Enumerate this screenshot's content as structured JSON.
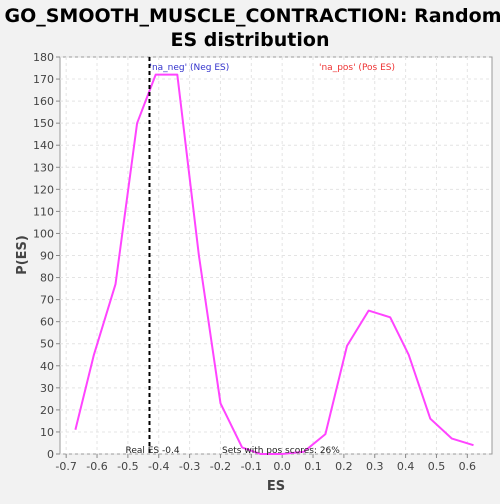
{
  "chart_data": {
    "type": "line",
    "title_lines": [
      "GO_SMOOTH_MUSCLE_CONTRACTION: Random",
      "ES distribution"
    ],
    "xlabel": "ES",
    "ylabel": "P(ES)",
    "xlim": [
      -0.72,
      0.68
    ],
    "ylim": [
      0,
      180
    ],
    "xticks": [
      "-0.7",
      "-0.6",
      "-0.5",
      "-0.4",
      "-0.3",
      "-0.2",
      "-0.1",
      "0.0",
      "0.1",
      "0.2",
      "0.3",
      "0.4",
      "0.5",
      "0.6"
    ],
    "xtick_values": [
      -0.7,
      -0.6,
      -0.5,
      -0.4,
      -0.3,
      -0.2,
      -0.1,
      0.0,
      0.1,
      0.2,
      0.3,
      0.4,
      0.5,
      0.6
    ],
    "yticks": [
      "0",
      "10",
      "20",
      "30",
      "40",
      "50",
      "60",
      "70",
      "80",
      "90",
      "100",
      "110",
      "120",
      "130",
      "140",
      "150",
      "160",
      "170",
      "180"
    ],
    "ytick_values": [
      0,
      10,
      20,
      30,
      40,
      50,
      60,
      70,
      80,
      90,
      100,
      110,
      120,
      130,
      140,
      150,
      160,
      170,
      180
    ],
    "grid": true,
    "series": [
      {
        "color": "#ff44ff",
        "x": [
          -0.67,
          -0.61,
          -0.54,
          -0.47,
          -0.41,
          -0.34,
          -0.27,
          -0.2,
          -0.13,
          -0.07,
          0.0,
          0.07,
          0.14,
          0.21,
          0.28,
          0.35,
          0.41,
          0.48,
          0.55,
          0.62
        ],
        "y": [
          11,
          45,
          77,
          150,
          172,
          172,
          90,
          23,
          3,
          0,
          0,
          1,
          9,
          49,
          65,
          62,
          45,
          16,
          7,
          4
        ]
      }
    ],
    "reference_line": {
      "x": -0.43,
      "label": "Real ES -0.4"
    },
    "annotations": {
      "neg_label": "'na_neg' (Neg ES)",
      "pos_label": "'na_pos' (Pos ES)",
      "sets_label": "Sets with pos scores: 26%"
    },
    "colors": {
      "neg": "#3333cc",
      "pos": "#ee3333",
      "line": "#ff44ff"
    }
  }
}
